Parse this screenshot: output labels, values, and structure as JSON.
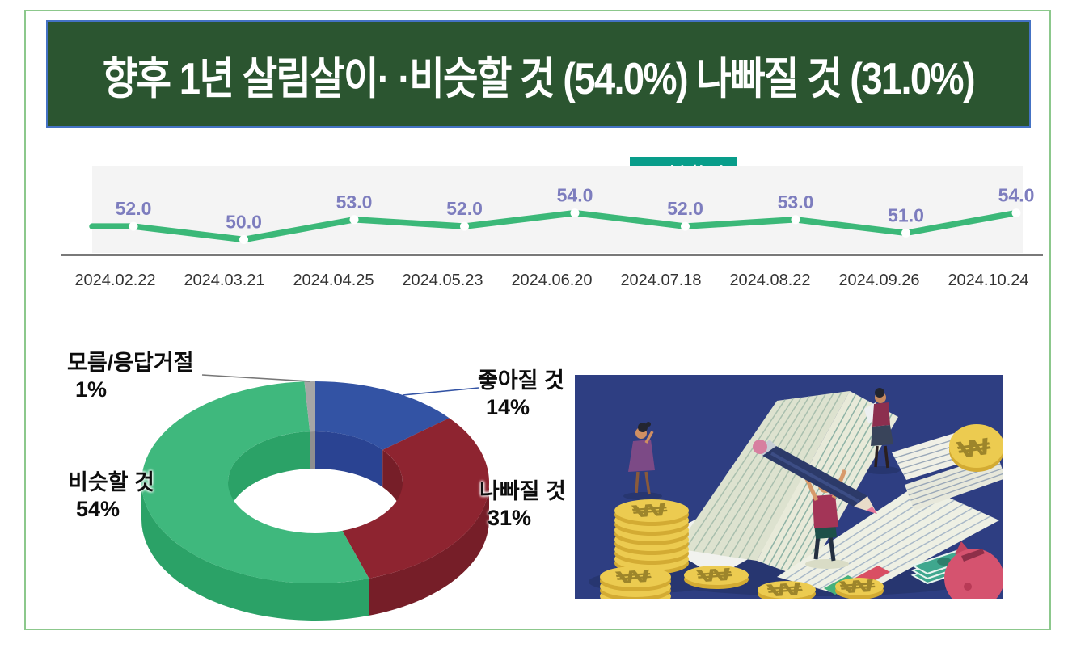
{
  "page": {
    "frame_color": "#8cc88c",
    "background": "#ffffff"
  },
  "title": {
    "text": "향후 1년 살림살이· ·비슷할 것 (54.0%) 나빠질 것 (31.0%)",
    "bg_color": "#2b5530",
    "border_color": "#4472c4",
    "text_color": "#ffffff"
  },
  "chart_data": [
    {
      "type": "line",
      "legend": {
        "label": "▼ 비슷할 것",
        "bg_color": "#089d8a",
        "text_color": "#ffffff",
        "position": "top-right-of-center"
      },
      "categories": [
        "2024.02.22",
        "2024.03.21",
        "2024.04.25",
        "2024.05.23",
        "2024.06.20",
        "2024.07.18",
        "2024.08.22",
        "2024.09.26",
        "2024.10.24"
      ],
      "series": [
        {
          "name": "비슷할 것",
          "values": [
            52.0,
            50.0,
            53.0,
            52.0,
            54.0,
            52.0,
            53.0,
            51.0,
            54.0
          ]
        }
      ],
      "value_labels": [
        "52.0",
        "50.0",
        "53.0",
        "52.0",
        "54.0",
        "52.0",
        "53.0",
        "51.0",
        "54.0"
      ],
      "ylim": [
        48,
        61
      ],
      "grid": false,
      "line_color": "#3bb878",
      "marker_color": "#ffffff",
      "label_color": "#7d7dbe",
      "axis_color": "#4d4d4d",
      "plot_bg": "#f4f4f4",
      "date_color": "#333333"
    },
    {
      "type": "pie",
      "subtype": "donut-3d",
      "start_angle_deg": 0,
      "clockwise": true,
      "slices": [
        {
          "key": "better",
          "label": "좋아질 것",
          "pct": "14%",
          "value": 14,
          "top_color": "#3353a4",
          "side_color": "#2a4392"
        },
        {
          "key": "worse",
          "label": "나빠질 것",
          "pct": "31%",
          "value": 31,
          "top_color": "#8e2430",
          "side_color": "#761e28"
        },
        {
          "key": "same",
          "label": "비슷할 것",
          "pct": "54%",
          "value": 54,
          "top_color": "#3fb87d",
          "side_color": "#2ba267"
        },
        {
          "key": "unknown",
          "label": "모름/응답거절",
          "pct": "1%",
          "value": 1,
          "top_color": "#a6a6a6",
          "side_color": "#8f8f8f"
        }
      ],
      "leader_line_colors": {
        "better": "#3353a4",
        "unknown": "#777777"
      }
    }
  ],
  "illustration": {
    "alt": "재무 장부 일러스트: 큰 연필로 장부에 기록하는 사람, 원화 동전 더미, 영수증, 지폐, 돼지 저금통",
    "bg_color": "#2e3e82",
    "coin_color": "#eccb50",
    "coin_side_color": "#d3ab33",
    "page_color": "#eef0e4",
    "pig_color": "#d5536f",
    "note_color": "#3fa78e",
    "currency_symbol": "₩"
  }
}
